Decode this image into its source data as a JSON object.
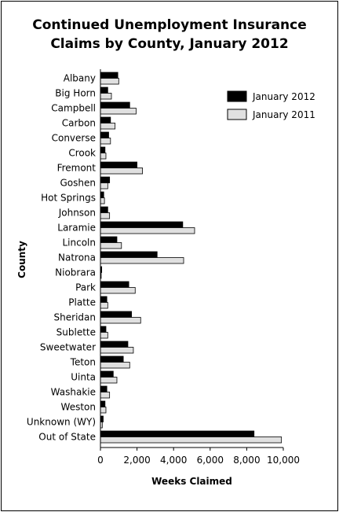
{
  "chart_data": {
    "type": "bar",
    "orientation": "horizontal",
    "title_line1": "Continued Unemployment Insurance",
    "title_line2": "Claims by County, January 2012",
    "xlabel": "Weeks Claimed",
    "ylabel": "County",
    "xlim": [
      0,
      10000
    ],
    "xticks": [
      "0",
      "2,000",
      "4,000",
      "6,000",
      "8,000",
      "10,000"
    ],
    "legend_position": "top-right",
    "categories": [
      "Albany",
      "Big Horn",
      "Campbell",
      "Carbon",
      "Converse",
      "Crook",
      "Fremont",
      "Goshen",
      "Hot Springs",
      "Johnson",
      "Laramie",
      "Lincoln",
      "Natrona",
      "Niobrara",
      "Park",
      "Platte",
      "Sheridan",
      "Sublette",
      "Sweetwater",
      "Teton",
      "Uinta",
      "Washakie",
      "Weston",
      "Unknown (WY)",
      "Out of State"
    ],
    "series": [
      {
        "name": "January 2012",
        "color": "#000000",
        "values": [
          950,
          400,
          1600,
          550,
          450,
          250,
          2000,
          500,
          180,
          400,
          4500,
          900,
          3100,
          70,
          1550,
          350,
          1700,
          300,
          1500,
          1250,
          700,
          350,
          250,
          150,
          8400
        ]
      },
      {
        "name": "January 2011",
        "color": "#e0e0e0",
        "values": [
          1000,
          600,
          1950,
          800,
          550,
          300,
          2300,
          400,
          220,
          500,
          5150,
          1150,
          4550,
          40,
          1900,
          400,
          2200,
          400,
          1800,
          1600,
          900,
          500,
          300,
          100,
          9900
        ]
      }
    ]
  }
}
